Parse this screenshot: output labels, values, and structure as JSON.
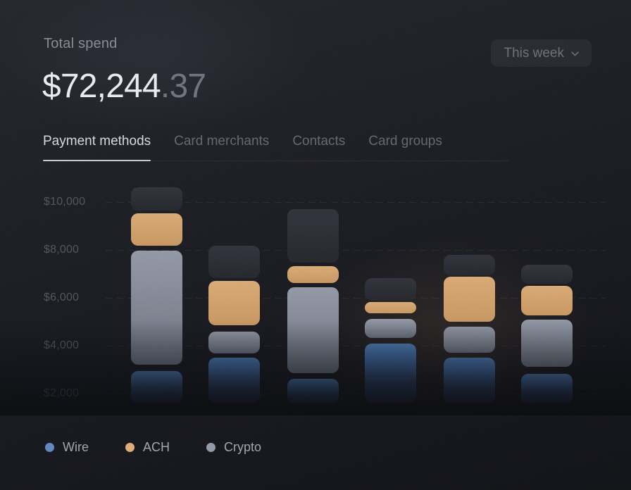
{
  "header": {
    "label": "Total spend",
    "amount_int": "$72,244",
    "amount_frac": ".37",
    "period": {
      "label": "This week"
    }
  },
  "tabs": [
    {
      "label": "Payment methods",
      "active": true
    },
    {
      "label": "Card merchants",
      "active": false
    },
    {
      "label": "Contacts",
      "active": false
    },
    {
      "label": "Card groups",
      "active": false
    }
  ],
  "legend": [
    {
      "label": "Wire",
      "key": "wire",
      "color": "#5e86bd"
    },
    {
      "label": "ACH",
      "key": "ach",
      "color": "#dfa977"
    },
    {
      "label": "Crypto",
      "key": "crypto",
      "color": "#9198a4"
    }
  ],
  "chart_data": {
    "type": "bar",
    "stacked": true,
    "grid": "dashed-horizontal",
    "legend_position": "bottom-left",
    "x_axis_labels": null,
    "yticks": [
      "$10,000",
      "$8,000",
      "$6,000",
      "$4,000",
      "$2,000"
    ],
    "ytick_values": [
      10000,
      8000,
      6000,
      4000,
      2000
    ],
    "ylim": [
      1100,
      10800
    ],
    "baseline_fade": true,
    "series": [
      {
        "name": "Wire",
        "key": "wire",
        "color": "#4673ae"
      },
      {
        "name": "ACH",
        "key": "ach",
        "color": "#cf9e6b"
      },
      {
        "name": "Crypto",
        "key": "crypto",
        "color": "#7d8390"
      },
      {
        "name": "unlabeled-dark-cap",
        "key": "cap",
        "color": "#282a32"
      }
    ],
    "bars": [
      {
        "segments": {
          "wire": [
            1625,
            2950
          ],
          "crypto": [
            3200,
            7975
          ],
          "ach": [
            8175,
            9525
          ],
          "cap": [
            9650,
            10625
          ]
        }
      },
      {
        "segments": {
          "wire": [
            1625,
            3500
          ],
          "crypto": [
            3675,
            4600
          ],
          "ach": [
            4850,
            6725
          ],
          "cap": [
            6825,
            8175
          ]
        }
      },
      {
        "segments": {
          "wire": [
            1600,
            2625
          ],
          "crypto": [
            2850,
            6450
          ],
          "ach": [
            6625,
            7325
          ],
          "cap": [
            7475,
            9725
          ]
        }
      },
      {
        "segments": {
          "wire": [
            1625,
            4100
          ],
          "crypto": [
            4325,
            5125
          ],
          "ach": [
            5350,
            5825
          ],
          "cap": [
            5875,
            6825
          ]
        }
      },
      {
        "segments": {
          "wire": [
            1600,
            3500
          ],
          "crypto": [
            3725,
            4800
          ],
          "ach": [
            5000,
            6875
          ],
          "cap": [
            6950,
            7800
          ]
        }
      },
      {
        "segments": {
          "wire": [
            1600,
            2825
          ],
          "crypto": [
            3125,
            5100
          ],
          "ach": [
            5275,
            6500
          ],
          "cap": [
            6600,
            7375
          ]
        }
      }
    ]
  }
}
